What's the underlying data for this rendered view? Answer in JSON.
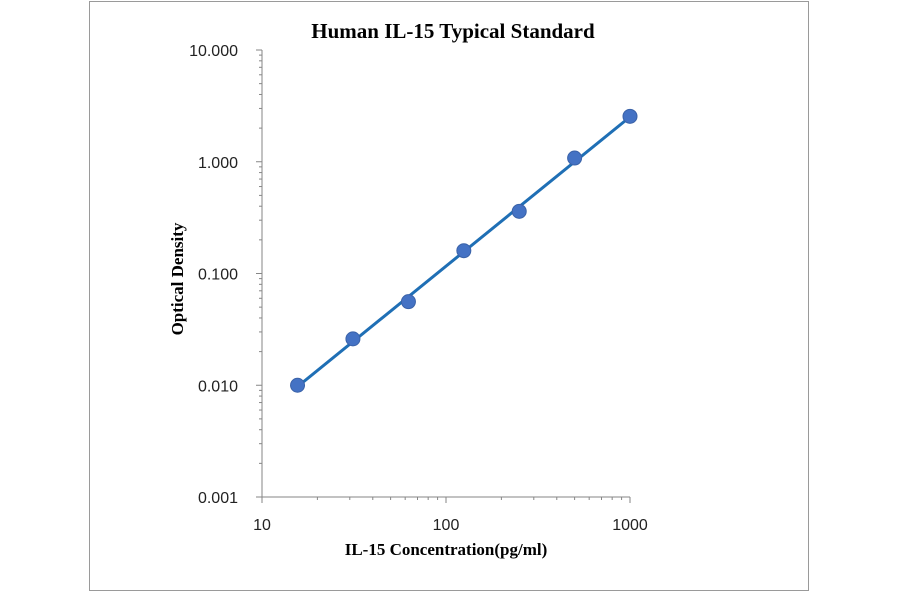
{
  "chart_data": {
    "type": "scatter",
    "title": "Human IL-15 Typical Standard",
    "xlabel": "IL-15 Concentration(pg/ml)",
    "ylabel": "Optical Density",
    "x_scale": "log",
    "y_scale": "log",
    "xlim": [
      10,
      1000
    ],
    "ylim": [
      0.001,
      10
    ],
    "x_ticks": [
      "10",
      "100",
      "1000"
    ],
    "y_ticks": [
      "0.001",
      "0.010",
      "0.100",
      "1.000",
      "10.000"
    ],
    "grid": false,
    "legend": "none",
    "series": [
      {
        "x": [
          15.6,
          31.2,
          62.5,
          125,
          250,
          500,
          1000
        ],
        "y": [
          0.01,
          0.026,
          0.056,
          0.16,
          0.36,
          1.08,
          2.55
        ],
        "marker_color": "#4472C4",
        "line_color": "#1F6FB5",
        "trendline": true
      }
    ]
  }
}
